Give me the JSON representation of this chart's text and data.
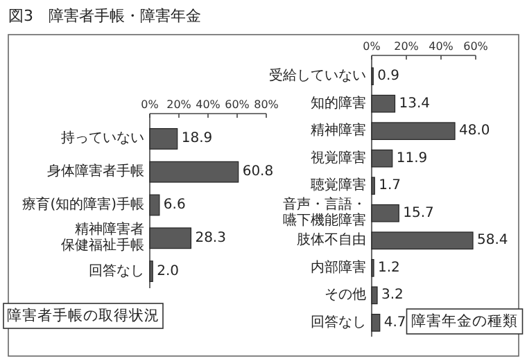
{
  "chart_data": [
    {
      "type": "bar",
      "orientation": "horizontal",
      "title": "図3　障害者手帳・障害年金",
      "subtitle": "障害者手帳の取得状況",
      "categories": [
        "持っていない",
        "身体障害者手帳",
        "療育(知的障害)手帳",
        "精神障害者保健福祉手帳",
        "回答なし"
      ],
      "values": [
        18.9,
        60.8,
        6.6,
        28.3,
        2.0
      ],
      "color": "#5a5a5a",
      "value_labels": [
        "18.9",
        "60.8",
        "6.6",
        "28.3",
        "2.0"
      ],
      "xlim": [
        0,
        80
      ],
      "xticks": [
        {
          "value": 0,
          "label": "0%"
        },
        {
          "value": 20,
          "label": "20%"
        },
        {
          "value": 40,
          "label": "40%"
        },
        {
          "value": 60,
          "label": "60%"
        },
        {
          "value": 80,
          "label": "80%"
        }
      ]
    },
    {
      "type": "bar",
      "orientation": "horizontal",
      "subtitle": "障害年金の種類",
      "categories": [
        "受給していない",
        "知的障害",
        "精神障害",
        "視覚障害",
        "聴覚障害",
        "音声・言語・嚥下機能障害",
        "肢体不自由",
        "内部障害",
        "その他",
        "回答なし"
      ],
      "values": [
        0.9,
        13.4,
        48.0,
        11.9,
        1.7,
        15.7,
        58.4,
        1.2,
        3.2,
        4.7
      ],
      "color": "#5a5a5a",
      "value_labels": [
        "0.9",
        "13.4",
        "48.0",
        "11.9",
        "1.7",
        "15.7",
        "58.4",
        "1.2",
        "3.2",
        "4.7"
      ],
      "xlim": [
        0,
        60
      ],
      "xticks": [
        {
          "value": 0,
          "label": "0%"
        },
        {
          "value": 20,
          "label": "20%"
        },
        {
          "value": 40,
          "label": "40%"
        },
        {
          "value": 60,
          "label": "60%"
        }
      ]
    }
  ]
}
